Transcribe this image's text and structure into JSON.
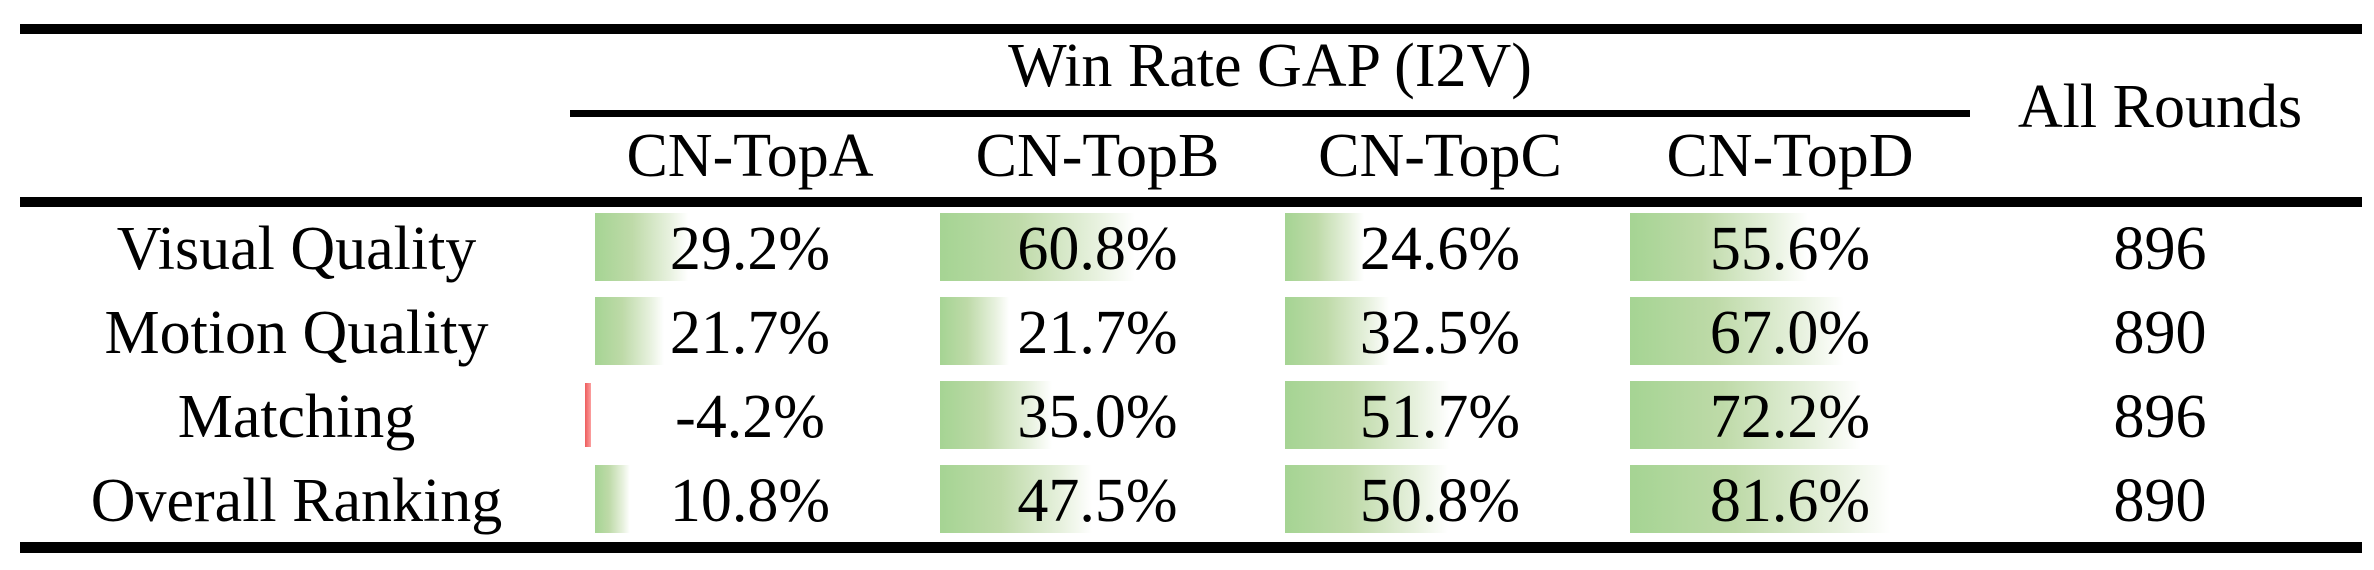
{
  "table": {
    "title": "Win Rate GAP (I2V)",
    "all_rounds_header": "All Rounds",
    "columns": [
      "CN-TopA",
      "CN-TopB",
      "CN-TopC",
      "CN-TopD"
    ],
    "rows": [
      {
        "label": "Visual Quality",
        "values": [
          29.2,
          60.8,
          24.6,
          55.6
        ],
        "display": [
          "29.2%",
          "60.8%",
          "24.6%",
          "55.6%"
        ],
        "all_rounds": "896"
      },
      {
        "label": "Motion Quality",
        "values": [
          21.7,
          21.7,
          32.5,
          67.0
        ],
        "display": [
          "21.7%",
          "21.7%",
          "32.5%",
          "67.0%"
        ],
        "all_rounds": "890"
      },
      {
        "label": "Matching",
        "values": [
          -4.2,
          35.0,
          51.7,
          72.2
        ],
        "display": [
          "-4.2%",
          "35.0%",
          "51.7%",
          "72.2%"
        ],
        "all_rounds": "896"
      },
      {
        "label": "Overall Ranking",
        "values": [
          10.8,
          47.5,
          50.8,
          81.6
        ],
        "display": [
          "10.8%",
          "47.5%",
          "50.8%",
          "81.6%"
        ],
        "all_rounds": "890"
      }
    ]
  },
  "colors": {
    "bar_positive_start": "#a5d493",
    "bar_positive_mid": "#bedaa8",
    "bar_negative_start": "#ee5c5c",
    "bar_negative_end": "#fb9f9f",
    "rule": "#000000",
    "text": "#000000"
  },
  "chart_data": {
    "type": "table",
    "title": "Win Rate GAP (I2V)",
    "columns": [
      "CN-TopA",
      "CN-TopB",
      "CN-TopC",
      "CN-TopD",
      "All Rounds"
    ],
    "row_labels": [
      "Visual Quality",
      "Motion Quality",
      "Matching",
      "Overall Ranking"
    ],
    "win_rate_gap_percent": {
      "Visual Quality": [
        29.2,
        60.8,
        24.6,
        55.6
      ],
      "Motion Quality": [
        21.7,
        21.7,
        32.5,
        67.0
      ],
      "Matching": [
        -4.2,
        35.0,
        51.7,
        72.2
      ],
      "Overall Ranking": [
        10.8,
        47.5,
        50.8,
        81.6
      ]
    },
    "all_rounds": [
      896,
      890,
      896,
      890
    ],
    "layout_hints": "booktabs table; green gradient data bars behind positive percentages, thin red bar for the negative value; cmidrule spans only the four CN-Top columns; All Rounds header vertically spans both header rows"
  }
}
